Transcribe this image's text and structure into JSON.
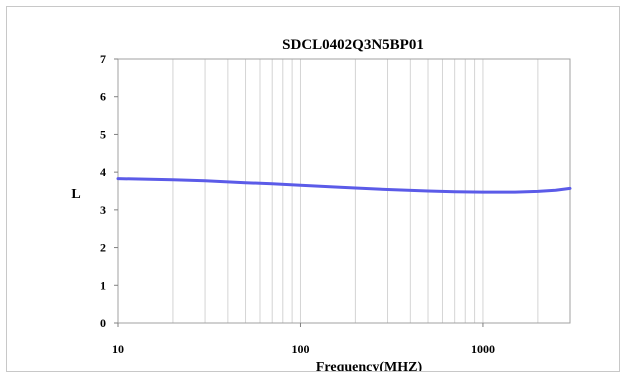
{
  "chart_data": {
    "type": "line",
    "title": "SDCL0402Q3N5BP01",
    "xlabel": "Frequency(MHZ)",
    "ylabel": "L",
    "x_scale": "log",
    "xlim": [
      10,
      3000
    ],
    "ylim": [
      0,
      7
    ],
    "x_ticks": [
      10,
      100,
      1000
    ],
    "y_ticks": [
      0,
      1,
      2,
      3,
      4,
      5,
      6,
      7
    ],
    "grid": true,
    "legend": "none",
    "series": [
      {
        "color": "#5b5be8",
        "x": [
          10,
          15,
          20,
          30,
          50,
          70,
          100,
          150,
          200,
          300,
          500,
          700,
          1000,
          1500,
          2000,
          2500,
          3000
        ],
        "y": [
          3.83,
          3.81,
          3.8,
          3.77,
          3.72,
          3.69,
          3.65,
          3.61,
          3.58,
          3.54,
          3.5,
          3.48,
          3.47,
          3.47,
          3.49,
          3.52,
          3.57
        ]
      }
    ]
  }
}
